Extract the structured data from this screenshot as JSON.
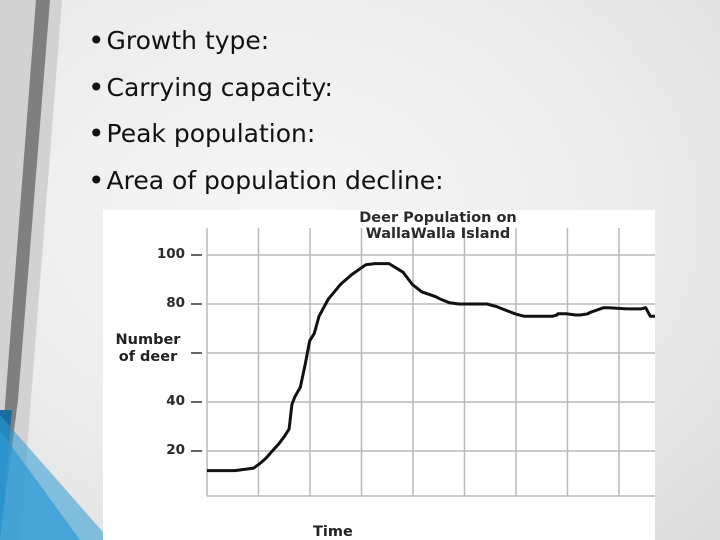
{
  "bullets": [
    {
      "text": "Growth type:"
    },
    {
      "text": "Carrying capacity:"
    },
    {
      "text": "Peak population:"
    },
    {
      "text": "Area of population decline:"
    }
  ],
  "chart_data": {
    "type": "line",
    "title": "Deer Population on\nWallaWalla Island",
    "xlabel": "Time",
    "ylabel": "Number\nof deer",
    "ylim": [
      10,
      105
    ],
    "yticks": [
      20,
      40,
      80,
      100
    ],
    "grid": true,
    "series": [
      {
        "x": [
          0,
          3,
          4,
          5,
          5.7,
          6.3,
          7,
          7.7,
          8.3,
          8.8,
          9.1,
          9.4,
          10,
          10.5,
          11,
          11.5,
          12,
          13,
          14.3,
          15.5,
          17,
          18,
          19.5,
          21,
          22,
          23,
          24.5,
          25,
          26,
          27,
          28,
          29,
          30,
          31,
          33,
          34,
          35,
          36,
          37,
          37.5,
          37.6,
          38.5,
          39.5,
          40,
          40.8,
          41,
          42.5,
          43,
          45,
          46.5,
          47,
          47.5,
          48
        ],
        "y": [
          12,
          12,
          12.5,
          13,
          15,
          17,
          20,
          23,
          26,
          29,
          39,
          42,
          46,
          55,
          65,
          68,
          75,
          82,
          88,
          92,
          96,
          96.5,
          96.5,
          93,
          88,
          85,
          83,
          82,
          80.5,
          80,
          80,
          80,
          80,
          79,
          76,
          75,
          75,
          75,
          75,
          75.5,
          76,
          76,
          75.5,
          75.5,
          76,
          76.5,
          78.5,
          78.5,
          78,
          78,
          78.5,
          75,
          75
        ]
      }
    ]
  },
  "colors": {
    "accent": "#2e9ad6",
    "accent_dark": "#1b6d9f",
    "line": "#111111",
    "grid": "#b9b9b9"
  }
}
